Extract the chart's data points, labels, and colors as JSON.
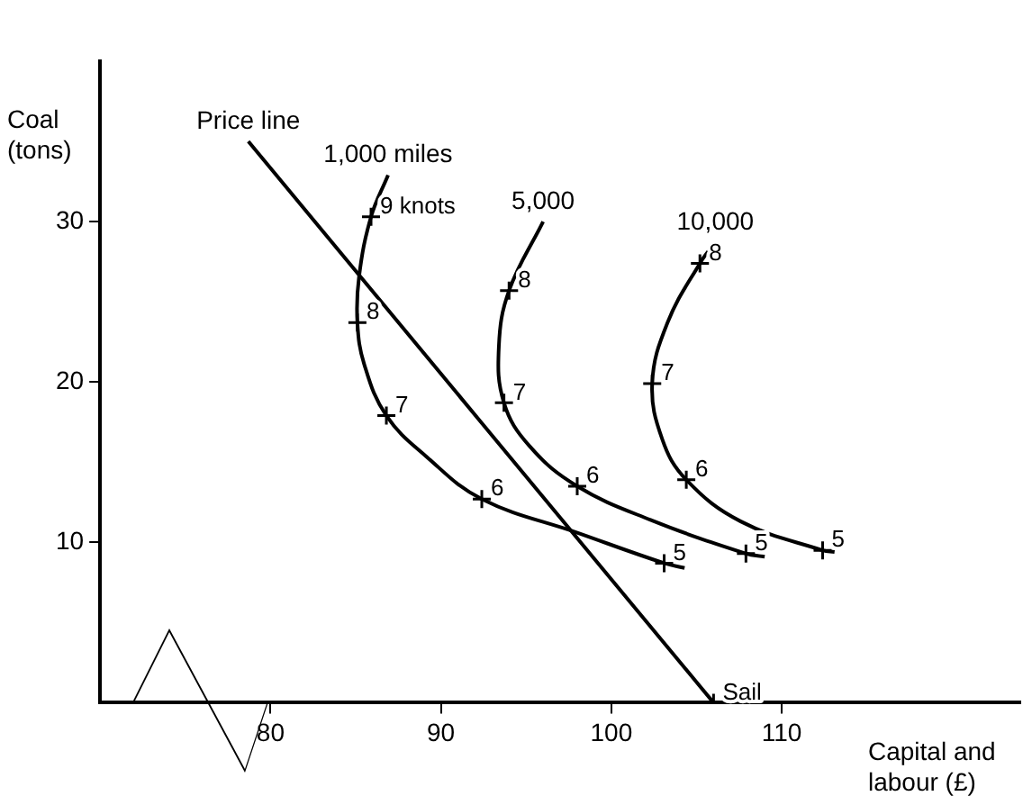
{
  "chart_data": {
    "type": "line",
    "xlabel": "Capital and labour (£)",
    "ylabel": "Coal (tons)",
    "xlim": [
      70,
      124
    ],
    "xticks": [
      80,
      90,
      100,
      110
    ],
    "ylim": [
      0,
      40
    ],
    "yticks": [
      10,
      20,
      30
    ],
    "grid": false,
    "legend": false,
    "marker": "none",
    "series": [
      {
        "name": "1,000 miles",
        "color": "#000000",
        "x": [
          86.9,
          85.9,
          85.2,
          85.1,
          85.5,
          86.8,
          89.2,
          92.4,
          98.0,
          103.1,
          104.3
        ],
        "values": [
          32.9,
          30.3,
          26.6,
          23.7,
          21.1,
          17.9,
          15.3,
          12.7,
          10.6,
          8.7,
          8.4
        ]
      },
      {
        "name": "5,000",
        "color": "#000000",
        "x": [
          96.0,
          94.0,
          93.4,
          93.7,
          95.2,
          98.0,
          102.3,
          107.9,
          109.0
        ],
        "values": [
          30.0,
          25.7,
          22.2,
          18.7,
          16.0,
          13.5,
          11.4,
          9.3,
          9.1
        ]
      },
      {
        "name": "10,000",
        "color": "#000000",
        "x": [
          106.1,
          105.2,
          103.3,
          102.4,
          103.0,
          104.4,
          107.6,
          112.4,
          113.1
        ],
        "values": [
          28.7,
          27.4,
          23.7,
          19.9,
          16.4,
          13.9,
          11.3,
          9.5,
          9.4
        ]
      },
      {
        "name": "Price line",
        "color": "#000000",
        "x": [
          78.7,
          106.0
        ],
        "values": [
          35.0,
          0
        ]
      },
      {
        "type": "scatter",
        "marker": "cross",
        "color": "#000000",
        "x": [
          85.9,
          85.1,
          86.8,
          92.4,
          103.1,
          94.0,
          93.7,
          98.0,
          107.9,
          105.2,
          102.4,
          104.4,
          112.4,
          106.0
        ],
        "values": [
          30.3,
          23.7,
          17.9,
          12.7,
          8.7,
          25.7,
          18.7,
          13.5,
          9.3,
          27.4,
          19.9,
          13.9,
          9.5,
          0
        ]
      }
    ],
    "annotations": [
      {
        "text": "9 knots",
        "x": 85.9,
        "y": 30.3
      },
      {
        "text": "8",
        "x": 85.1,
        "y": 23.7
      },
      {
        "text": "7",
        "x": 86.8,
        "y": 17.9
      },
      {
        "text": "6",
        "x": 92.4,
        "y": 12.7
      },
      {
        "text": "5",
        "x": 103.1,
        "y": 8.7
      },
      {
        "text": "8",
        "x": 94.0,
        "y": 25.7
      },
      {
        "text": "7",
        "x": 93.7,
        "y": 18.7
      },
      {
        "text": "6",
        "x": 98.0,
        "y": 13.5
      },
      {
        "text": "5",
        "x": 107.9,
        "y": 9.3
      },
      {
        "text": "8",
        "x": 105.2,
        "y": 27.4
      },
      {
        "text": "7",
        "x": 102.4,
        "y": 19.9
      },
      {
        "text": "6",
        "x": 104.4,
        "y": 13.9
      },
      {
        "text": "5",
        "x": 112.4,
        "y": 9.5
      },
      {
        "text": "Sail",
        "x": 106.0,
        "y": 0
      }
    ]
  }
}
